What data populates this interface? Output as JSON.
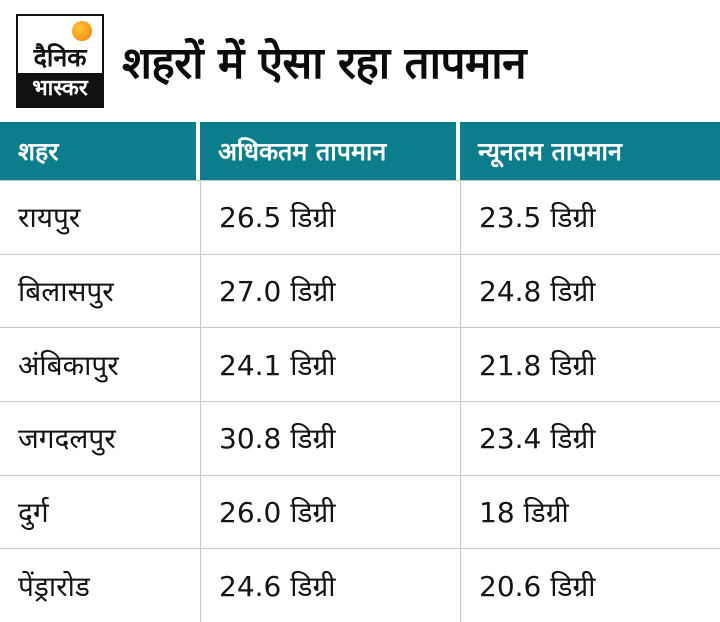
{
  "brand": {
    "logo_line1": "दैनिक",
    "logo_line2": "भास्कर",
    "sun_color": "#f59a1e"
  },
  "header": {
    "title": "शहरों में ऐसा रहा तापमान"
  },
  "colors": {
    "table_header_bg": "#0c7d8b",
    "table_header_text": "#ffffff",
    "row_divider": "#c8c8c8"
  },
  "chart_data": {
    "type": "table",
    "title": "शहरों में ऐसा रहा तापमान",
    "columns": [
      "शहर",
      "अधिकतम तापमान",
      "न्यूनतम तापमान"
    ],
    "units": "डिग्री",
    "rows": [
      {
        "city": "रायपुर",
        "max": 26.5,
        "min": 23.5,
        "max_label": "26.5 डिग्री",
        "min_label": "23.5 डिग्री"
      },
      {
        "city": "बिलासपुर",
        "max": 27.0,
        "min": 24.8,
        "max_label": "27.0 डिग्री",
        "min_label": "24.8 डिग्री"
      },
      {
        "city": "अंबिकापुर",
        "max": 24.1,
        "min": 21.8,
        "max_label": "24.1 डिग्री",
        "min_label": "21.8 डिग्री"
      },
      {
        "city": "जगदलपुर",
        "max": 30.8,
        "min": 23.4,
        "max_label": "30.8 डिग्री",
        "min_label": "23.4 डिग्री"
      },
      {
        "city": "दुर्ग",
        "max": 26.0,
        "min": 18,
        "max_label": "26.0 डिग्री",
        "min_label": "18 डिग्री"
      },
      {
        "city": "पेंड्रारोड",
        "max": 24.6,
        "min": 20.6,
        "max_label": "24.6 डिग्री",
        "min_label": "20.6 डिग्री"
      }
    ]
  }
}
